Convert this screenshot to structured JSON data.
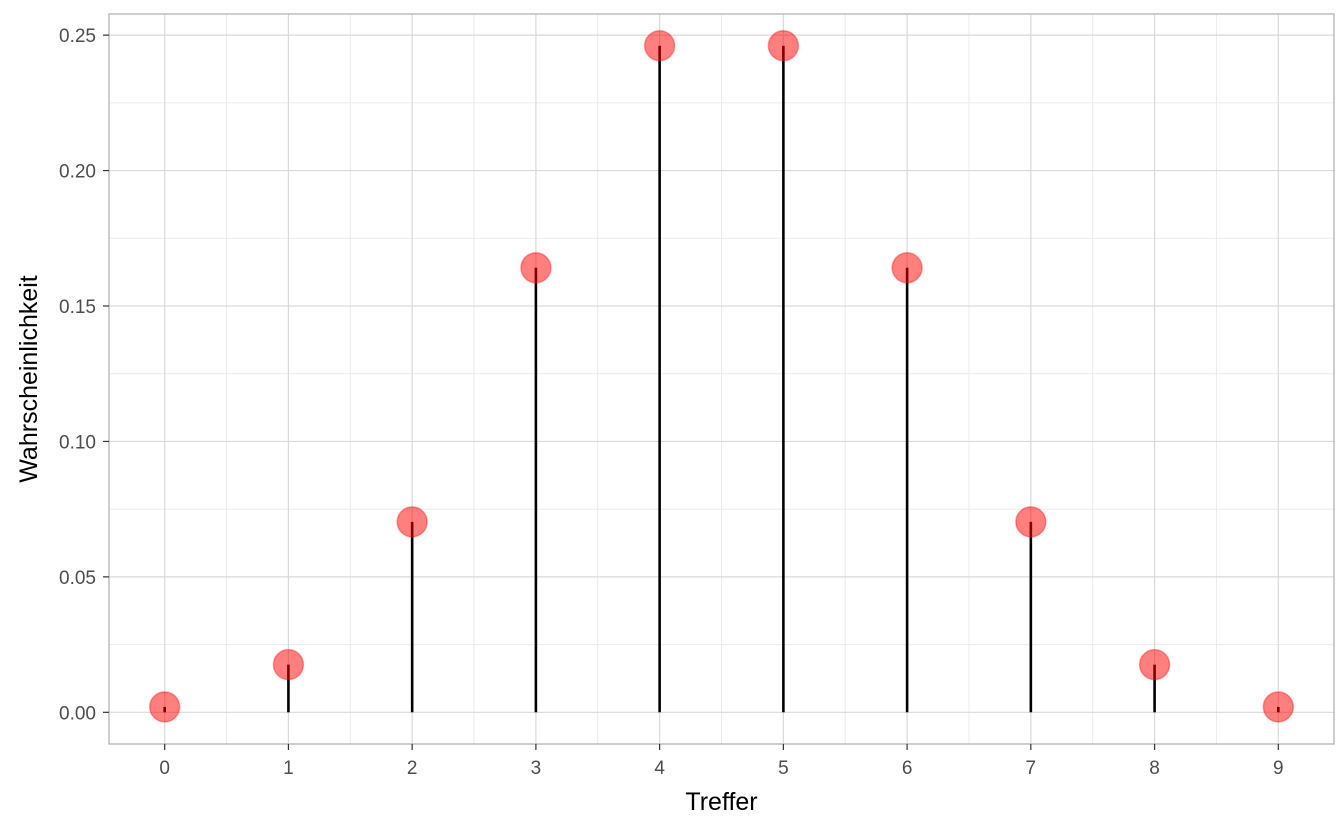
{
  "chart_data": {
    "type": "scatter",
    "subtype": "lollipop",
    "title": "",
    "xlabel": "Treffer",
    "ylabel": "Wahrscheinlichkeit",
    "x": [
      0,
      1,
      2,
      3,
      4,
      5,
      6,
      7,
      8,
      9
    ],
    "values": [
      0.002,
      0.0176,
      0.0703,
      0.1641,
      0.2461,
      0.2461,
      0.1641,
      0.0703,
      0.0176,
      0.002
    ],
    "xlim": [
      -0.45,
      9.45
    ],
    "ylim": [
      -0.0117,
      0.2578
    ],
    "x_ticks": [
      "0",
      "1",
      "2",
      "3",
      "4",
      "5",
      "6",
      "7",
      "8",
      "9"
    ],
    "y_ticks": [
      "0.00",
      "0.05",
      "0.10",
      "0.15",
      "0.20",
      "0.25"
    ],
    "y_tick_values": [
      0,
      0.05,
      0.1,
      0.15,
      0.2,
      0.25
    ],
    "grid": true,
    "legend": "none",
    "colors": {
      "point": "#ff0000",
      "point_opacity": 0.5,
      "stem": "#000000",
      "grid_major": "#d9d9d9",
      "grid_minor": "#ebebeb",
      "panel_border": "#b3b3b3",
      "tick_text": "#4d4d4d"
    }
  }
}
